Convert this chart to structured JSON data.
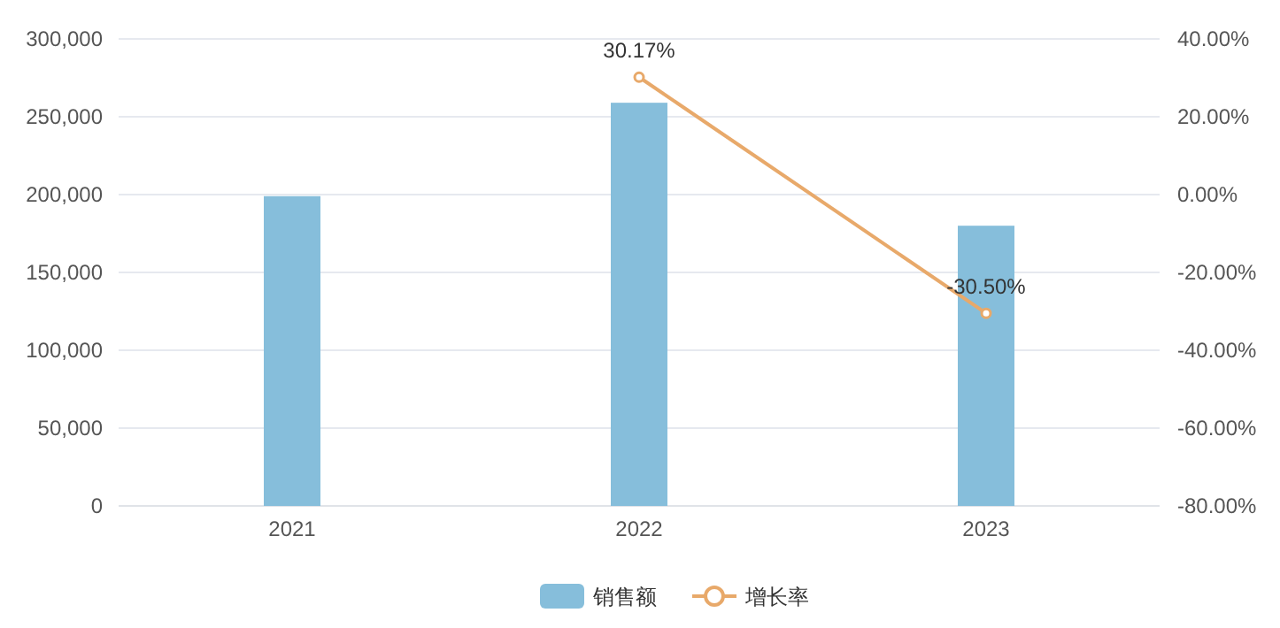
{
  "chart_data": {
    "type": "bar",
    "categories": [
      "2021",
      "2022",
      "2023"
    ],
    "series": [
      {
        "name": "销售额",
        "color": "#86bedb",
        "values": [
          199000,
          259000,
          180000
        ]
      },
      {
        "name": "增长率",
        "type": "line",
        "axis": "y2",
        "color": "#e8a96a",
        "marker": "circle",
        "values": [
          null,
          30.17,
          -30.5
        ],
        "value_labels": [
          null,
          "30.17%",
          "-30.50%"
        ]
      }
    ],
    "ylim": [
      0,
      300000
    ],
    "yticks": [
      {
        "value": 0,
        "label": "0"
      },
      {
        "value": 50000,
        "label": "50,000"
      },
      {
        "value": 100000,
        "label": "100,000"
      },
      {
        "value": 150000,
        "label": "150,000"
      },
      {
        "value": 200000,
        "label": "200,000"
      },
      {
        "value": 250000,
        "label": "250,000"
      },
      {
        "value": 300000,
        "label": "300,000"
      }
    ],
    "y2lim": [
      -80,
      40
    ],
    "y2ticks": [
      {
        "value": -80,
        "label": "-80.00%"
      },
      {
        "value": -60,
        "label": "-60.00%"
      },
      {
        "value": -40,
        "label": "-40.00%"
      },
      {
        "value": -20,
        "label": "-20.00%"
      },
      {
        "value": 0,
        "label": "0.00%"
      },
      {
        "value": 20,
        "label": "20.00%"
      },
      {
        "value": 40,
        "label": "40.00%"
      }
    ],
    "grid": "y",
    "legend": "bottom"
  }
}
